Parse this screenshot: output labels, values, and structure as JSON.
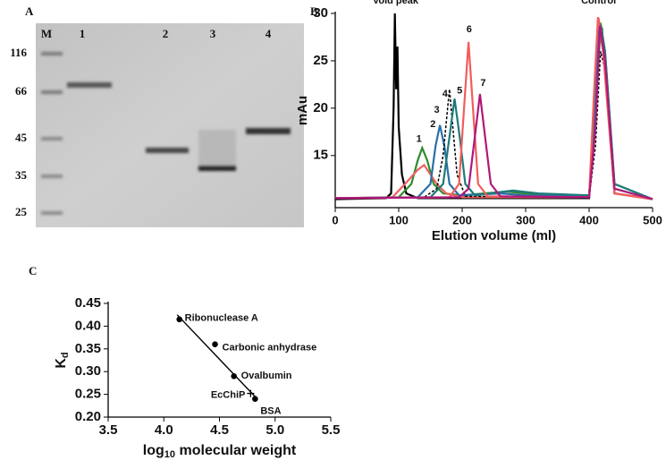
{
  "gel": {
    "letter": "A",
    "lanes": [
      "M",
      "1",
      "2",
      "3",
      "4"
    ],
    "markers": [
      "116",
      "66",
      "45",
      "35",
      "25"
    ]
  },
  "chart_data": [
    {
      "type": "line",
      "panel": "B",
      "xlabel": "Elution volume (ml)",
      "ylabel": "mAu",
      "xlim": [
        0,
        500
      ],
      "ylim": [
        9.5,
        30
      ],
      "xticks": [
        0,
        100,
        200,
        300,
        400,
        500
      ],
      "yticks": [
        15,
        20,
        25,
        30
      ],
      "series": [
        {
          "color": "#000000",
          "x": [
            0,
            80,
            88,
            92,
            94,
            96,
            98,
            100,
            105,
            112,
            130,
            400,
            408,
            414,
            420,
            428,
            440,
            500
          ],
          "values": [
            10.4,
            10.5,
            11,
            20,
            30,
            22,
            26.5,
            18,
            13,
            11,
            10.5,
            10.5,
            18,
            27,
            28.5,
            22,
            11,
            10.4
          ]
        },
        {
          "color": "#2e8b2e",
          "x": [
            0,
            100,
            120,
            130,
            137,
            145,
            155,
            170,
            200,
            270,
            300,
            350,
            400,
            410,
            418,
            425,
            440,
            500
          ],
          "values": [
            10.5,
            10.6,
            12,
            14.5,
            15.8,
            14.5,
            12,
            11,
            10.8,
            11.2,
            11,
            10.7,
            10.7,
            20,
            29,
            26,
            12,
            10.4
          ]
        },
        {
          "color": "#f06060",
          "x": [
            0,
            90,
            110,
            130,
            140,
            150,
            160,
            175,
            200,
            400,
            408,
            415,
            425,
            440,
            500
          ],
          "values": [
            10.5,
            10.6,
            12,
            13.5,
            14,
            13,
            12,
            11,
            10.6,
            10.6,
            20,
            29.5,
            25,
            11,
            10.4
          ]
        },
        {
          "color": "#2a6fa8",
          "x": [
            0,
            130,
            150,
            158,
            165,
            172,
            180,
            195,
            260,
            300,
            400,
            408,
            416,
            424,
            440,
            500
          ],
          "values": [
            10.5,
            10.6,
            12,
            16,
            18.2,
            16,
            12,
            10.8,
            11,
            10.8,
            10.7,
            18,
            28.5,
            26,
            11.5,
            10.4
          ]
        },
        {
          "color": "#000000",
          "dash": true,
          "x": [
            0,
            140,
            160,
            170,
            177,
            180,
            184,
            192,
            205,
            400,
            410,
            418,
            425,
            440,
            500
          ],
          "values": [
            10.5,
            10.6,
            11.5,
            15,
            20,
            22,
            19,
            13,
            10.7,
            10.6,
            16,
            26,
            24,
            11,
            10.4
          ]
        },
        {
          "color": "#1f7a7a",
          "x": [
            0,
            150,
            170,
            180,
            188,
            196,
            205,
            220,
            280,
            320,
            400,
            410,
            418,
            425,
            440,
            500
          ],
          "values": [
            10.5,
            10.6,
            12,
            17,
            21,
            17,
            12,
            10.8,
            11.3,
            11,
            10.8,
            19,
            28.8,
            26,
            12,
            10.4
          ]
        },
        {
          "color": "#f25c5c",
          "x": [
            0,
            180,
            195,
            203,
            210,
            217,
            225,
            240,
            400,
            408,
            414,
            422,
            440,
            500
          ],
          "values": [
            10.5,
            10.6,
            12,
            20,
            27,
            20,
            12,
            10.7,
            10.6,
            22,
            29.6,
            26,
            11,
            10.4
          ]
        },
        {
          "color": "#b0187a",
          "x": [
            0,
            195,
            210,
            220,
            228,
            236,
            245,
            260,
            400,
            410,
            417,
            425,
            440,
            500
          ],
          "values": [
            10.5,
            10.6,
            11.5,
            17,
            21.5,
            17,
            12,
            10.7,
            10.6,
            18,
            28.7,
            25,
            11.5,
            10.4
          ]
        }
      ],
      "annotations": [
        {
          "text": "Void peak",
          "x": 95,
          "y": 31.3
        },
        {
          "text": "Control",
          "x": 415,
          "y": 31.3
        },
        {
          "text": "1",
          "x": 132,
          "y": 16.7
        },
        {
          "text": "2",
          "x": 154,
          "y": 18.3
        },
        {
          "text": "3",
          "x": 160,
          "y": 19.8
        },
        {
          "text": "4",
          "x": 173,
          "y": 21.5
        },
        {
          "text": "5",
          "x": 196,
          "y": 21.8
        },
        {
          "text": "6",
          "x": 211,
          "y": 28.3
        },
        {
          "text": "7",
          "x": 233,
          "y": 22.6
        }
      ]
    },
    {
      "type": "scatter",
      "panel": "C",
      "xlabel": {
        "pre": "log",
        "sub": "10",
        "post": " molecular weight"
      },
      "ylabel": {
        "main": "K",
        "sub": "d"
      },
      "xlim": [
        3.5,
        5.5
      ],
      "ylim": [
        0.2,
        0.45
      ],
      "xticks": [
        3.5,
        {
          "value": 4,
          "label": "4.0"
        },
        4.5,
        {
          "value": 5,
          "label": "5.0"
        },
        5.5
      ],
      "yticks": [
        {
          "value": 0.2,
          "label": "0.20"
        },
        0.25,
        {
          "value": 0.3,
          "label": "0.30"
        },
        0.35,
        {
          "value": 0.4,
          "label": "0.40"
        },
        0.45
      ],
      "points": {
        "labels": [
          "Ribonuclease A",
          "Carbonic anhydrase",
          "Ovalbumin",
          "BSA"
        ],
        "x": [
          4.14,
          4.46,
          4.63,
          4.82
        ],
        "values": [
          0.415,
          0.36,
          0.29,
          0.24
        ]
      },
      "sample": {
        "label": "EcChiP",
        "x": 4.78,
        "value": 0.252
      },
      "fit": {
        "x": [
          4.12,
          4.82
        ],
        "values": [
          0.425,
          0.245
        ]
      }
    }
  ]
}
